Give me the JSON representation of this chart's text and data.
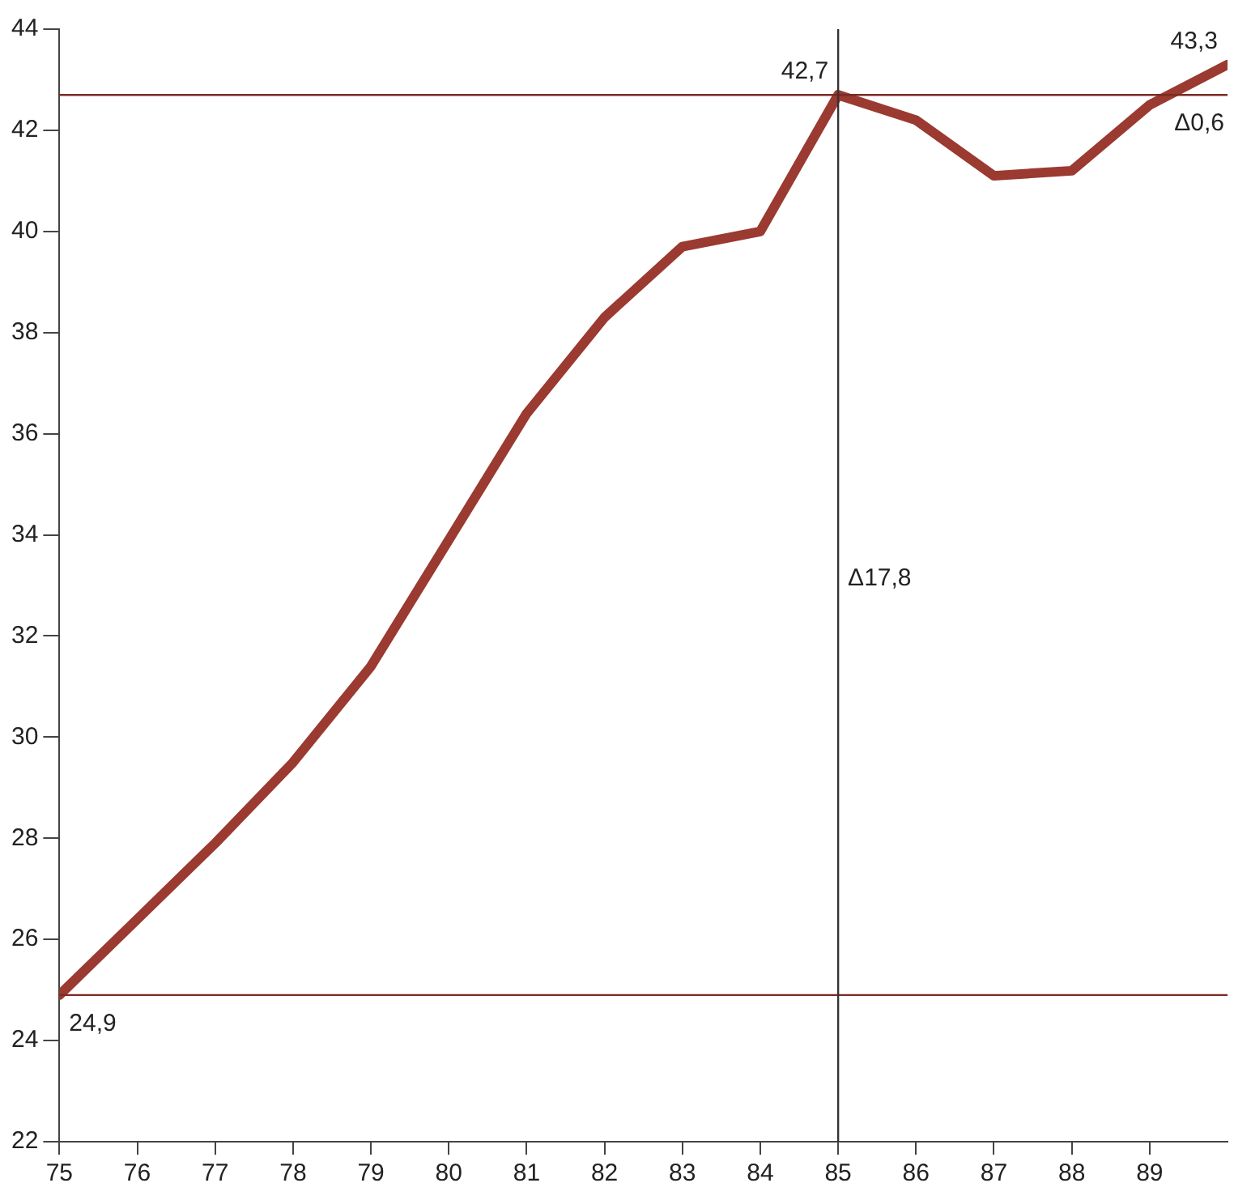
{
  "chart_data": {
    "type": "line",
    "x": [
      75,
      76,
      77,
      78,
      79,
      80,
      81,
      82,
      83,
      84,
      85,
      86,
      87,
      88,
      89,
      90
    ],
    "series": [
      {
        "color": "#9b3a30",
        "values": [
          24.9,
          26.4,
          27.9,
          29.5,
          31.4,
          33.9,
          36.4,
          38.3,
          39.7,
          40.0,
          42.7,
          42.2,
          41.1,
          41.2,
          42.5,
          43.3
        ]
      }
    ],
    "xlim": [
      75,
      90
    ],
    "xticks": [
      75,
      76,
      77,
      78,
      79,
      80,
      81,
      82,
      83,
      84,
      85,
      86,
      87,
      88,
      89
    ],
    "ylim": [
      22,
      44
    ],
    "yticks": [
      22,
      24,
      26,
      28,
      30,
      32,
      34,
      36,
      38,
      40,
      42,
      44
    ],
    "grid": false,
    "legend": false,
    "marker": "none",
    "line_style": "solid",
    "ref_lines": [
      {
        "axis": "y",
        "value": 24.9,
        "color": "#7a2a22"
      },
      {
        "axis": "y",
        "value": 42.7,
        "color": "#7a2a22",
        "label": "Δ0,6"
      },
      {
        "axis": "x",
        "value": 85,
        "color": "#333333",
        "label": "Δ17,8"
      }
    ],
    "annotations": [
      {
        "text": "24,9",
        "x": 75,
        "y": 24.9
      },
      {
        "text": "42,7",
        "x": 85,
        "y": 42.7
      },
      {
        "text": "43,3",
        "x": 90,
        "y": 43.3
      }
    ]
  }
}
